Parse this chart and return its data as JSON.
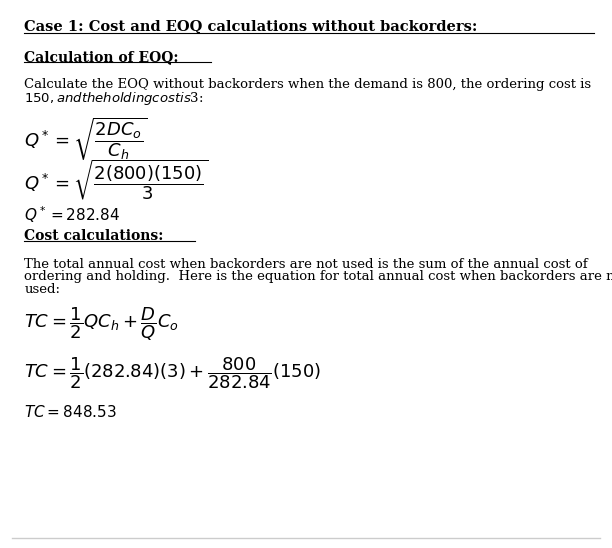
{
  "bg_color": "#ffffff",
  "border_color": "#cccccc",
  "text_color": "#000000",
  "title": "Case 1: Cost and EOQ calculations without backorders:",
  "section1": "Calculation of EOQ:",
  "para1_line1": "Calculate the EOQ without backorders when the demand is 800, the ordering cost is",
  "para1_line2": "$150, and the holding cost is $3:",
  "section2": "Cost calculations:",
  "para2_line1": "The total annual cost when backorders are not used is the sum of the annual cost of",
  "para2_line2": "ordering and holding.  Here is the equation for total annual cost when backorders are not",
  "para2_line3": "used:",
  "figsize": [
    6.12,
    5.48
  ],
  "dpi": 100,
  "lm": 0.04,
  "title_fs": 10.5,
  "section_fs": 10,
  "para_fs": 9.5,
  "formula_fs": 13,
  "result_fs": 11
}
